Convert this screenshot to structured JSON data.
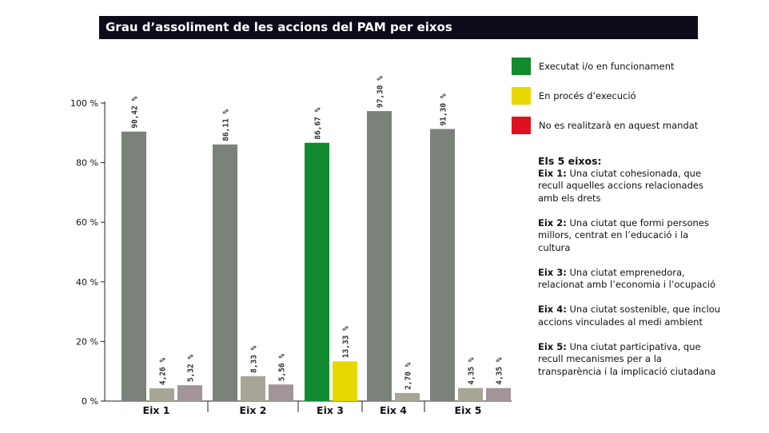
{
  "title": "Grau d’assoliment de les accions del PAM per eixos",
  "legend": [
    {
      "label": "Executat i/o en funcionament",
      "color": "#128a2f"
    },
    {
      "label": "En procés d’execució",
      "color": "#e6d800"
    },
    {
      "label": "No es realitzarà en aquest mandat",
      "color": "#e01020"
    }
  ],
  "descriptions": {
    "heading": "Els 5 eixos:",
    "items": [
      {
        "name": "Eix 1:",
        "text": " Una ciutat cohesionada, que recull aquelles accions relacionades amb els drets"
      },
      {
        "name": "Eix 2:",
        "text": " Una ciutat que formi persones millors, centrat en l’educació i la cultura"
      },
      {
        "name": "Eix 3:",
        "text": " Una ciutat emprenedora, relacionat amb l’economia i l’ocupació"
      },
      {
        "name": "Eix 4:",
        "text": " Una ciutat sostenible, que inclou accions vinculades al medi ambient"
      },
      {
        "name": "Eix 5:",
        "text": " Una ciutat participativa, que recull mecanismes per a la transparència i la implicació ciutadana"
      }
    ]
  },
  "chart_data": {
    "type": "bar",
    "categories": [
      "Eix 1",
      "Eix 2",
      "Eix 3",
      "Eix 4",
      "Eix 5"
    ],
    "ylim": [
      0,
      100
    ],
    "yticks": [
      "0 %",
      "20 %",
      "40 %",
      "60 %",
      "80 %",
      "100 %"
    ],
    "ytick_values": [
      0,
      20,
      40,
      60,
      80,
      100
    ],
    "series": [
      {
        "name": "Executat i/o en funcionament",
        "values": [
          90.42,
          86.11,
          86.67,
          97.3,
          91.3
        ],
        "labels": [
          "90,42 %",
          "86,11 %",
          "86,67 %",
          "97,30 %",
          "91,30 %"
        ],
        "colors": [
          "#7a8279",
          "#7a8279",
          "#128a2f",
          "#7a8279",
          "#7a8279"
        ]
      },
      {
        "name": "En procés d’execució",
        "values": [
          4.26,
          8.33,
          13.33,
          2.7,
          4.35
        ],
        "labels": [
          "4,26 %",
          "8,33 %",
          "13,33 %",
          "2,70 %",
          "4,35 %"
        ],
        "colors": [
          "#a7a596",
          "#a7a596",
          "#e6d800",
          "#a7a596",
          "#a7a596"
        ]
      },
      {
        "name": "No es realitzarà en aquest mandat",
        "values": [
          5.32,
          5.56,
          null,
          null,
          4.35
        ],
        "labels": [
          "5,32 %",
          "5,56 %",
          "",
          "",
          "4,35 %"
        ],
        "colors": [
          "#a3939a",
          "#a3939a",
          "#e01020",
          "#a3939a",
          "#a3939a"
        ]
      }
    ],
    "grid": false,
    "legend_position": "right"
  }
}
